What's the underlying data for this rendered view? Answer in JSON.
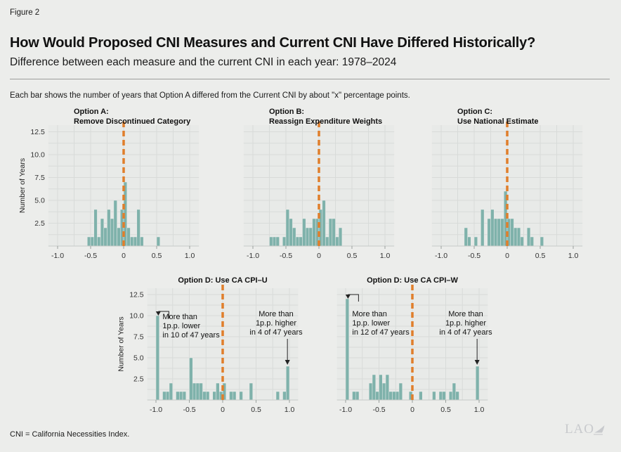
{
  "figure_label": "Figure 2",
  "title": "How Would Proposed CNI Measures and Current CNI Have Differed Historically?",
  "subtitle": "Difference between each measure and the current CNI in each year: 1978–2024",
  "note": "Each bar shows the number of years that Option A differed from the Current CNI by about \"x\" percentage points.",
  "footer": "CNI = California Necessities Index.",
  "logo_text": "LAO",
  "colors": {
    "page": "#ECEDEB",
    "panel": "#E8EAE8",
    "grid": "#D8DBD9",
    "bar": "#7FB2AB",
    "zero_line": "#E07E2B",
    "baseline": "#C6C9C7",
    "tick": "#9AA09D",
    "logo": "#C8CACD"
  },
  "axis": {
    "ylabel": "Number of Years",
    "xlim": [
      -1.15,
      1.15
    ],
    "ylim": [
      0,
      13
    ],
    "grid": "on",
    "x_ticks": [
      {
        "v": -1,
        "label": "-1.0"
      },
      {
        "v": -0.5,
        "label": "-0.5"
      },
      {
        "v": 0,
        "label": "0"
      },
      {
        "v": 0.5,
        "label": "0.5"
      },
      {
        "v": 1,
        "label": "1.0"
      }
    ],
    "y_ticks": [
      {
        "v": 2.5,
        "label": "2.5"
      },
      {
        "v": 5,
        "label": "5.0"
      },
      {
        "v": 7.5,
        "label": "7.5"
      },
      {
        "v": 10,
        "label": "10.0"
      },
      {
        "v": 12.5,
        "label": "12.5"
      }
    ]
  },
  "chart_data": [
    {
      "id": "option-a",
      "type": "bar",
      "title_lines": [
        "Option A:",
        "Remove Discontinued Category"
      ],
      "show_y_axis": true,
      "bin_width": 0.05,
      "ylabel": "Number of Years",
      "bins": [
        [
          -0.525,
          1
        ],
        [
          -0.475,
          1
        ],
        [
          -0.425,
          4
        ],
        [
          -0.375,
          1
        ],
        [
          -0.325,
          3
        ],
        [
          -0.275,
          2
        ],
        [
          -0.225,
          4
        ],
        [
          -0.175,
          3
        ],
        [
          -0.125,
          5
        ],
        [
          -0.075,
          2
        ],
        [
          -0.025,
          4
        ],
        [
          0.025,
          7
        ],
        [
          0.075,
          2
        ],
        [
          0.125,
          1
        ],
        [
          0.175,
          1
        ],
        [
          0.225,
          4
        ],
        [
          0.275,
          1
        ],
        [
          0.525,
          1
        ]
      ],
      "annotations": []
    },
    {
      "id": "option-b",
      "type": "bar",
      "title_lines": [
        "Option B:",
        "Reassign Expenditure Weights"
      ],
      "show_y_axis": false,
      "bin_width": 0.05,
      "bins": [
        [
          -0.725,
          1
        ],
        [
          -0.675,
          1
        ],
        [
          -0.625,
          1
        ],
        [
          -0.525,
          1
        ],
        [
          -0.475,
          4
        ],
        [
          -0.425,
          3
        ],
        [
          -0.375,
          2
        ],
        [
          -0.325,
          1
        ],
        [
          -0.275,
          1
        ],
        [
          -0.225,
          3
        ],
        [
          -0.175,
          2
        ],
        [
          -0.125,
          2
        ],
        [
          -0.075,
          3
        ],
        [
          -0.025,
          3
        ],
        [
          0.025,
          4
        ],
        [
          0.075,
          5
        ],
        [
          0.125,
          1
        ],
        [
          0.175,
          3
        ],
        [
          0.225,
          3
        ],
        [
          0.275,
          1
        ],
        [
          0.325,
          2
        ]
      ],
      "annotations": []
    },
    {
      "id": "option-c",
      "type": "bar",
      "title_lines": [
        "Option C:",
        "Use National Estimate"
      ],
      "show_y_axis": false,
      "bin_width": 0.05,
      "bins": [
        [
          -0.625,
          2
        ],
        [
          -0.575,
          1
        ],
        [
          -0.475,
          1
        ],
        [
          -0.375,
          4
        ],
        [
          -0.275,
          3
        ],
        [
          -0.225,
          4
        ],
        [
          -0.175,
          3
        ],
        [
          -0.125,
          3
        ],
        [
          -0.075,
          3
        ],
        [
          -0.025,
          6
        ],
        [
          0.025,
          3
        ],
        [
          0.075,
          3
        ],
        [
          0.125,
          2
        ],
        [
          0.175,
          2
        ],
        [
          0.225,
          1
        ],
        [
          0.325,
          2
        ],
        [
          0.375,
          1
        ],
        [
          0.525,
          1
        ]
      ],
      "annotations": []
    },
    {
      "id": "cpi-u",
      "type": "bar",
      "title_lines": [
        "Option D: Use CA CPI–U"
      ],
      "show_y_axis": true,
      "bin_width": 0.05,
      "bins": [
        [
          -0.975,
          10
        ],
        [
          -0.875,
          1
        ],
        [
          -0.825,
          1
        ],
        [
          -0.775,
          2
        ],
        [
          -0.675,
          1
        ],
        [
          -0.625,
          1
        ],
        [
          -0.575,
          1
        ],
        [
          -0.475,
          5
        ],
        [
          -0.425,
          2
        ],
        [
          -0.375,
          2
        ],
        [
          -0.325,
          2
        ],
        [
          -0.275,
          1
        ],
        [
          -0.225,
          1
        ],
        [
          -0.125,
          1
        ],
        [
          -0.075,
          2
        ],
        [
          -0.025,
          1
        ],
        [
          0.025,
          2
        ],
        [
          0.125,
          1
        ],
        [
          0.175,
          1
        ],
        [
          0.275,
          1
        ],
        [
          0.425,
          2
        ],
        [
          0.825,
          1
        ],
        [
          0.925,
          1
        ],
        [
          0.975,
          4
        ]
      ],
      "annotations": [
        {
          "side": "left",
          "bar_x": -0.975,
          "bar_n": 10,
          "lines": [
            "More than",
            "1p.p. lower",
            "in 10 of 47 years"
          ]
        },
        {
          "side": "right",
          "bar_x": 0.975,
          "bar_n": 4,
          "lines": [
            "More than",
            "1p.p. higher",
            "in 4 of 47 years"
          ]
        }
      ]
    },
    {
      "id": "cpi-w",
      "type": "bar",
      "title_lines": [
        "Option D: Use CA CPI–W"
      ],
      "show_y_axis": false,
      "bin_width": 0.05,
      "bins": [
        [
          -0.975,
          12
        ],
        [
          -0.875,
          1
        ],
        [
          -0.825,
          1
        ],
        [
          -0.625,
          2
        ],
        [
          -0.575,
          3
        ],
        [
          -0.525,
          1
        ],
        [
          -0.475,
          3
        ],
        [
          -0.425,
          2
        ],
        [
          -0.375,
          3
        ],
        [
          -0.325,
          1
        ],
        [
          -0.275,
          1
        ],
        [
          -0.225,
          1
        ],
        [
          -0.175,
          2
        ],
        [
          -0.025,
          1
        ],
        [
          0.125,
          1
        ],
        [
          0.325,
          1
        ],
        [
          0.425,
          1
        ],
        [
          0.475,
          1
        ],
        [
          0.575,
          1
        ],
        [
          0.625,
          2
        ],
        [
          0.675,
          1
        ],
        [
          0.975,
          4
        ]
      ],
      "annotations": [
        {
          "side": "left",
          "bar_x": -0.975,
          "bar_n": 12,
          "lines": [
            "More than",
            "1p.p. lower",
            "in 12 of 47 years"
          ]
        },
        {
          "side": "right",
          "bar_x": 0.975,
          "bar_n": 4,
          "lines": [
            "More than",
            "1p.p. higher",
            "in 4 of 47 years"
          ]
        }
      ]
    }
  ]
}
